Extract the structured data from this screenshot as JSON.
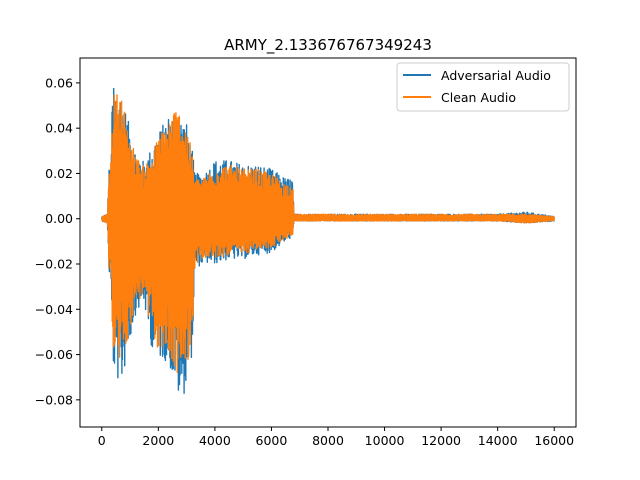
{
  "chart_data": {
    "type": "line",
    "title": "ARMY_2.133676767349243",
    "xlabel": "",
    "ylabel": "",
    "xlim": [
      -770,
      16770
    ],
    "ylim": [
      -0.092,
      0.071
    ],
    "x_ticks": [
      0,
      2000,
      4000,
      6000,
      8000,
      10000,
      12000,
      14000,
      16000
    ],
    "y_ticks": [
      -0.08,
      -0.06,
      -0.04,
      -0.02,
      0.0,
      0.02,
      0.04,
      0.06
    ],
    "x_tick_labels": [
      "0",
      "2000",
      "4000",
      "6000",
      "8000",
      "10000",
      "12000",
      "14000",
      "16000"
    ],
    "y_tick_labels": [
      "−0.08",
      "−0.06",
      "−0.04",
      "−0.02",
      "0.00",
      "0.02",
      "0.04",
      "0.06"
    ],
    "grid": false,
    "legend_position": "top-right",
    "samples": 16000,
    "series": [
      {
        "name": "Adversarial Audio",
        "color": "#1f77b4",
        "envelope": {
          "x": [
            0,
            200,
            250,
            300,
            400,
            500,
            700,
            900,
            1200,
            1500,
            1700,
            2000,
            2300,
            2600,
            2800,
            3000,
            3200,
            3300,
            3600,
            4000,
            4500,
            5000,
            5500,
            6000,
            6500,
            6750,
            6800,
            8000,
            10000,
            12000,
            14000,
            15000,
            16000
          ],
          "upper": [
            0.001,
            0.002,
            0.022,
            0.023,
            0.064,
            0.057,
            0.056,
            0.045,
            0.03,
            0.025,
            0.03,
            0.038,
            0.045,
            0.048,
            0.045,
            0.042,
            0.03,
            0.02,
            0.02,
            0.026,
            0.026,
            0.024,
            0.024,
            0.022,
            0.018,
            0.018,
            0.002,
            0.002,
            0.002,
            0.002,
            0.002,
            0.003,
            0.001
          ],
          "lower": [
            -0.001,
            -0.002,
            -0.024,
            -0.026,
            -0.066,
            -0.071,
            -0.074,
            -0.06,
            -0.042,
            -0.038,
            -0.055,
            -0.062,
            -0.063,
            -0.073,
            -0.084,
            -0.072,
            -0.06,
            -0.022,
            -0.02,
            -0.02,
            -0.018,
            -0.018,
            -0.016,
            -0.015,
            -0.01,
            -0.008,
            -0.001,
            -0.001,
            -0.001,
            -0.001,
            -0.001,
            -0.002,
            -0.001
          ]
        }
      },
      {
        "name": "Clean Audio",
        "color": "#ff7f0e",
        "envelope": {
          "x": [
            0,
            200,
            250,
            300,
            400,
            500,
            700,
            900,
            1200,
            1500,
            1700,
            2000,
            2300,
            2600,
            2800,
            3000,
            3200,
            3300,
            3600,
            4000,
            4500,
            5000,
            5500,
            6000,
            6500,
            6750,
            6800,
            8000,
            10000,
            12000,
            14000,
            15000,
            16000
          ],
          "upper": [
            0.001,
            0.002,
            0.02,
            0.021,
            0.055,
            0.056,
            0.055,
            0.042,
            0.028,
            0.023,
            0.028,
            0.036,
            0.043,
            0.05,
            0.047,
            0.042,
            0.028,
            0.018,
            0.018,
            0.024,
            0.024,
            0.022,
            0.022,
            0.02,
            0.016,
            0.016,
            0.002,
            0.002,
            0.002,
            0.002,
            0.002,
            0.002,
            0.001
          ],
          "lower": [
            -0.001,
            -0.002,
            -0.022,
            -0.024,
            -0.06,
            -0.063,
            -0.064,
            -0.054,
            -0.038,
            -0.034,
            -0.05,
            -0.058,
            -0.06,
            -0.068,
            -0.07,
            -0.065,
            -0.055,
            -0.02,
            -0.018,
            -0.018,
            -0.016,
            -0.016,
            -0.014,
            -0.013,
            -0.009,
            -0.007,
            -0.001,
            -0.001,
            -0.001,
            -0.001,
            -0.001,
            -0.002,
            -0.001
          ]
        }
      }
    ]
  }
}
